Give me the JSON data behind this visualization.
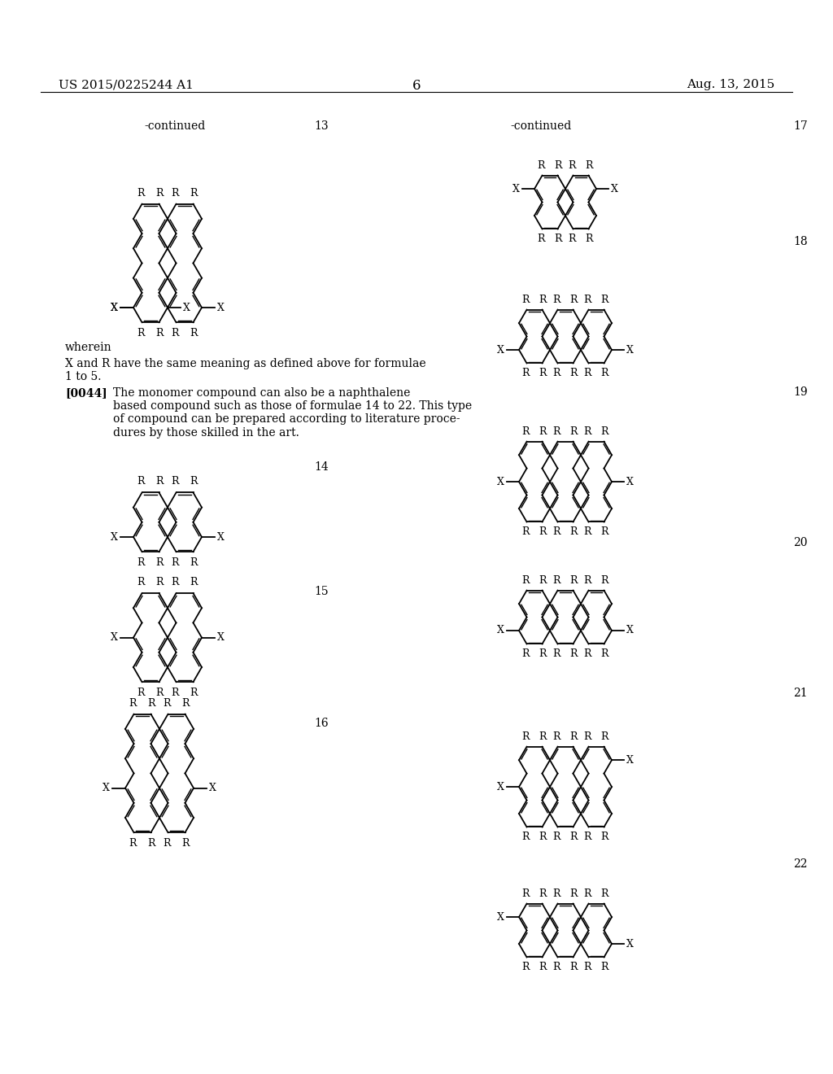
{
  "bg_color": "#ffffff",
  "header_left": "US 2015/0225244 A1",
  "header_right": "Aug. 13, 2015",
  "page_num": "6",
  "continued": "-continued",
  "formula_nums_left": [
    "13",
    "14",
    "15",
    "16"
  ],
  "formula_nums_right": [
    "17",
    "18",
    "19",
    "20",
    "21",
    "22"
  ],
  "wherein_text": "wherein",
  "body1": "X and R have the same meaning as defined above for formulae\n1 to 5.",
  "para_label": "[0044]",
  "para_text": "The monomer compound can also be a naphthalene\nbased compound such as those of formulae 14 to 22. This type\nof compound can be prepared according to literature proce-\ndures by those skilled in the art."
}
